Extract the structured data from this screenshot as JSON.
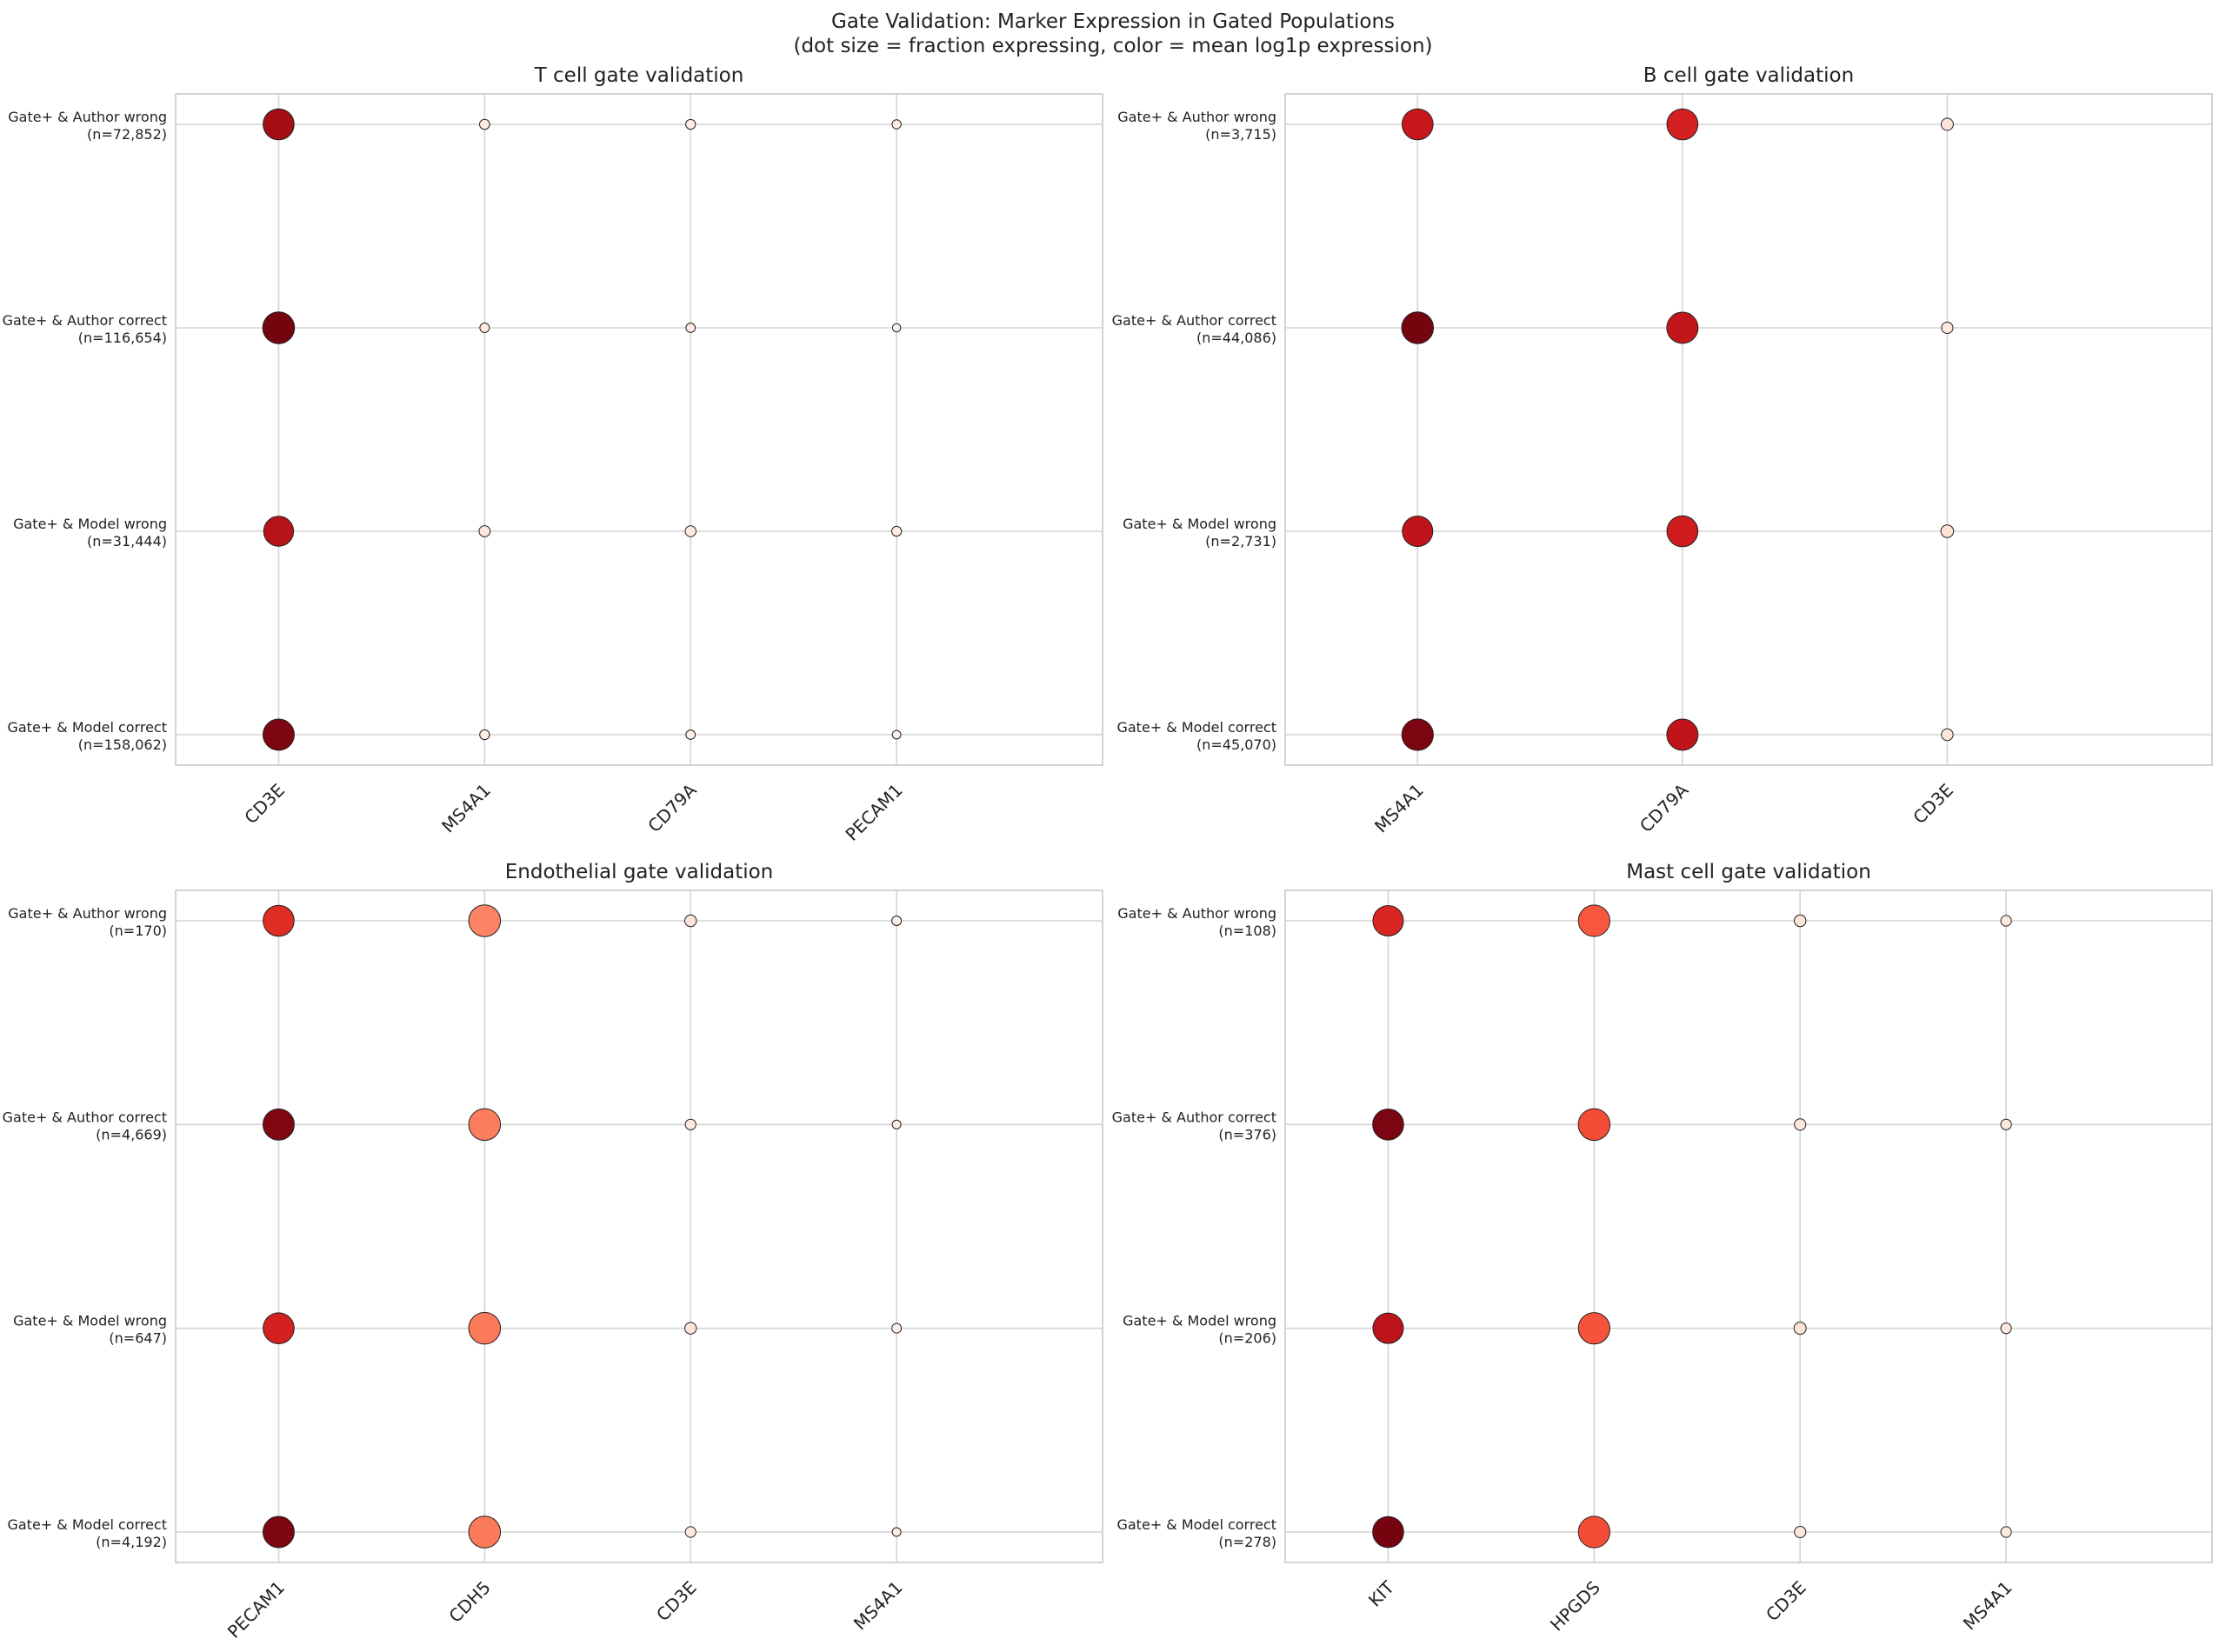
{
  "figure": {
    "title_line1": "Gate Validation: Marker Expression in Gated Populations",
    "title_line2": "(dot size = fraction expressing, color = mean log1p expression)"
  },
  "chart_data": [
    {
      "type": "scatter",
      "title": "T cell gate validation",
      "markers": [
        "CD3E",
        "MS4A1",
        "CD79A",
        "PECAM1"
      ],
      "groups": [
        {
          "label": "Gate+ & Author wrong",
          "n_label": "(n=72,852)",
          "fraction": [
            0.92,
            0.12,
            0.11,
            0.08
          ],
          "expr": [
            0.88,
            0.06,
            0.05,
            0.04
          ]
        },
        {
          "label": "Gate+ & Author correct",
          "n_label": "(n=116,654)",
          "fraction": [
            0.95,
            0.1,
            0.09,
            0.05
          ],
          "expr": [
            0.97,
            0.05,
            0.04,
            0.03
          ]
        },
        {
          "label": "Gate+ & Model wrong",
          "n_label": "(n=31,444)",
          "fraction": [
            0.88,
            0.16,
            0.15,
            0.11
          ],
          "expr": [
            0.82,
            0.08,
            0.08,
            0.05
          ]
        },
        {
          "label": "Gate+ & Model correct",
          "n_label": "(n=158,062)",
          "fraction": [
            0.93,
            0.11,
            0.09,
            0.06
          ],
          "expr": [
            0.96,
            0.05,
            0.04,
            0.03
          ]
        }
      ]
    },
    {
      "type": "scatter",
      "title": "B cell gate validation",
      "markers": [
        "MS4A1",
        "CD79A",
        "CD3E"
      ],
      "groups": [
        {
          "label": "Gate+ & Author wrong",
          "n_label": "(n=3,715)",
          "fraction": [
            0.92,
            0.92,
            0.2
          ],
          "expr": [
            0.76,
            0.72,
            0.1
          ]
        },
        {
          "label": "Gate+ & Author correct",
          "n_label": "(n=44,086)",
          "fraction": [
            0.95,
            0.93,
            0.17
          ],
          "expr": [
            0.97,
            0.78,
            0.08
          ]
        },
        {
          "label": "Gate+ & Model wrong",
          "n_label": "(n=2,731)",
          "fraction": [
            0.9,
            0.92,
            0.22
          ],
          "expr": [
            0.79,
            0.74,
            0.11
          ]
        },
        {
          "label": "Gate+ & Model correct",
          "n_label": "(n=45,070)",
          "fraction": [
            0.94,
            0.93,
            0.18
          ],
          "expr": [
            0.96,
            0.79,
            0.09
          ]
        }
      ]
    },
    {
      "type": "scatter",
      "title": "Endothelial gate validation",
      "markers": [
        "PECAM1",
        "CDH5",
        "CD3E",
        "MS4A1"
      ],
      "groups": [
        {
          "label": "Gate+ & Author wrong",
          "n_label": "(n=170)",
          "fraction": [
            0.92,
            0.95,
            0.18,
            0.1
          ],
          "expr": [
            0.68,
            0.42,
            0.1,
            0.05
          ]
        },
        {
          "label": "Gate+ & Author correct",
          "n_label": "(n=4,669)",
          "fraction": [
            0.93,
            0.95,
            0.14,
            0.07
          ],
          "expr": [
            0.95,
            0.44,
            0.07,
            0.04
          ]
        },
        {
          "label": "Gate+ & Model wrong",
          "n_label": "(n=647)",
          "fraction": [
            0.92,
            0.95,
            0.18,
            0.1
          ],
          "expr": [
            0.72,
            0.45,
            0.11,
            0.05
          ]
        },
        {
          "label": "Gate+ & Model correct",
          "n_label": "(n=4,192)",
          "fraction": [
            0.93,
            0.95,
            0.14,
            0.07
          ],
          "expr": [
            0.96,
            0.45,
            0.07,
            0.04
          ]
        }
      ]
    },
    {
      "type": "scatter",
      "title": "Mast cell gate validation",
      "markers": [
        "KIT",
        "HPGDS",
        "CD3E",
        "MS4A1"
      ],
      "groups": [
        {
          "label": "Gate+ & Author wrong",
          "n_label": "(n=108)",
          "fraction": [
            0.9,
            0.94,
            0.18,
            0.14
          ],
          "expr": [
            0.7,
            0.55,
            0.1,
            0.07
          ]
        },
        {
          "label": "Gate+ & Author correct",
          "n_label": "(n=376)",
          "fraction": [
            0.92,
            0.95,
            0.17,
            0.14
          ],
          "expr": [
            0.96,
            0.58,
            0.09,
            0.07
          ]
        },
        {
          "label": "Gate+ & Model wrong",
          "n_label": "(n=206)",
          "fraction": [
            0.9,
            0.94,
            0.2,
            0.14
          ],
          "expr": [
            0.8,
            0.56,
            0.11,
            0.07
          ]
        },
        {
          "label": "Gate+ & Model correct",
          "n_label": "(n=278)",
          "fraction": [
            0.92,
            0.94,
            0.17,
            0.14
          ],
          "expr": [
            0.97,
            0.58,
            0.09,
            0.07
          ]
        }
      ]
    }
  ]
}
